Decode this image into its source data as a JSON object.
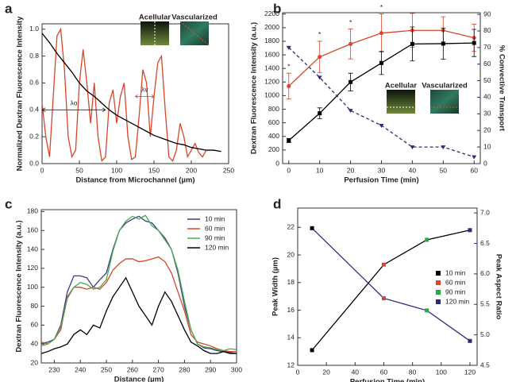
{
  "chart_data": [
    {
      "type": "line",
      "panel": "a",
      "xlabel": "Distance from Microchannel (µm)",
      "ylabel": "Normalized Dextran Fluorescence Intensity",
      "xlim": [
        0,
        250
      ],
      "xticks": [
        0,
        50,
        100,
        150,
        200,
        250
      ],
      "ylim": [
        0,
        1.04
      ],
      "yticks": [
        {
          "value": 0,
          "label": "0.0"
        },
        0.2,
        0.4,
        0.6,
        0.8,
        {
          "value": 1,
          "label": "1.0"
        }
      ],
      "series": [
        {
          "color": "#d9452b",
          "x": [
            0,
            5,
            10,
            15,
            20,
            25,
            30,
            35,
            40,
            45,
            50,
            55,
            60,
            65,
            70,
            75,
            80,
            85,
            90,
            95,
            100,
            105,
            110,
            115,
            120,
            125,
            130,
            135,
            140,
            145,
            150,
            155,
            160,
            165,
            170,
            175,
            180,
            185,
            190,
            195,
            200,
            205,
            210,
            215,
            220
          ],
          "values": [
            0.45,
            0.2,
            0.05,
            0.5,
            0.95,
            1.0,
            0.7,
            0.2,
            0.05,
            0.1,
            0.6,
            0.85,
            0.6,
            0.3,
            0.6,
            0.2,
            0.02,
            0.05,
            0.45,
            0.55,
            0.3,
            0.5,
            0.6,
            0.2,
            0.03,
            0.05,
            0.35,
            0.7,
            0.6,
            0.2,
            0.5,
            0.75,
            0.8,
            0.4,
            0.05,
            0.02,
            0.1,
            0.3,
            0.2,
            0.05,
            0.1,
            0.15,
            0.08,
            0.05,
            0.1
          ]
        },
        {
          "color": "#000000",
          "x": [
            0,
            10,
            20,
            30,
            40,
            50,
            60,
            70,
            80,
            90,
            100,
            110,
            120,
            130,
            140,
            150,
            160,
            170,
            180,
            190,
            200,
            210,
            220,
            230,
            240
          ],
          "values": [
            0.97,
            0.9,
            0.82,
            0.75,
            0.68,
            0.6,
            0.54,
            0.5,
            0.45,
            0.4,
            0.36,
            0.33,
            0.3,
            0.27,
            0.24,
            0.21,
            0.19,
            0.17,
            0.15,
            0.14,
            0.12,
            0.11,
            0.1,
            0.1,
            0.09
          ]
        }
      ],
      "lambda_o": "λo",
      "lambda_v": "λv",
      "insets": [
        "Acellular",
        "Vascularized"
      ]
    },
    {
      "type": "line",
      "panel": "b",
      "xlabel": "Perfusion Time (min)",
      "ylabel": "Dextran Fluorescence Intensity (a.u.)",
      "y2label": "% Convective Transport",
      "xlim": [
        -2,
        62
      ],
      "xticks": [
        0,
        10,
        20,
        30,
        40,
        50,
        60
      ],
      "ylim": [
        0,
        2220
      ],
      "yticks": [
        0,
        200,
        400,
        600,
        800,
        1000,
        1200,
        1400,
        1600,
        1800,
        2000,
        2200
      ],
      "y2lim": [
        0,
        91
      ],
      "y2ticks": [
        0,
        10,
        20,
        30,
        40,
        50,
        60,
        70,
        80,
        90
      ],
      "x": [
        0,
        10,
        20,
        30,
        40,
        50,
        60
      ],
      "series": [
        {
          "color": "#d9452b",
          "marker": "circle",
          "values": [
            1140,
            1570,
            1760,
            1920,
            1960,
            1960,
            1850
          ],
          "errors": [
            190,
            230,
            220,
            280,
            250,
            200,
            200
          ]
        },
        {
          "color": "#000000",
          "marker": "square",
          "values": [
            340,
            740,
            1200,
            1480,
            1760,
            1765,
            1775
          ],
          "errors": [
            30,
            80,
            130,
            170,
            250,
            230,
            200
          ]
        },
        {
          "color": "#2c2c7a",
          "marker": "triangle",
          "dash": true,
          "axis": "y2",
          "values": [
            70,
            52,
            32,
            23,
            10,
            10,
            4
          ]
        }
      ],
      "annotations": [
        {
          "text": "*",
          "x": 0
        },
        {
          "text": "*",
          "x": 10
        },
        {
          "text": "*",
          "x": 20
        },
        {
          "text": "*",
          "x": 30
        }
      ],
      "insets": [
        "Acellular",
        "Vascularized"
      ]
    },
    {
      "type": "line",
      "panel": "c",
      "xlabel": "Distance (µm)",
      "ylabel": "Dextran Fluorescence Intensity (a.u.)",
      "xlim": [
        225,
        300
      ],
      "xticks": [
        230,
        240,
        250,
        260,
        270,
        280,
        290,
        300
      ],
      "ylim": [
        20,
        182
      ],
      "yticks": [
        20,
        40,
        60,
        80,
        100,
        120,
        140,
        160,
        180
      ],
      "x": [
        225,
        227.5,
        230,
        232.5,
        235,
        237.5,
        240,
        242.5,
        245,
        247.5,
        250,
        252.5,
        255,
        257.5,
        260,
        262.5,
        265,
        267.5,
        270,
        272.5,
        275,
        277.5,
        280,
        282.5,
        285,
        287.5,
        290,
        292.5,
        295,
        297.5,
        300
      ],
      "series": [
        {
          "name": "10 min",
          "color": "#3a3a8c",
          "values": [
            40,
            42,
            45,
            60,
            95,
            112,
            112,
            110,
            100,
            108,
            115,
            140,
            160,
            168,
            172,
            175,
            170,
            168,
            160,
            152,
            140,
            115,
            80,
            55,
            40,
            36,
            35,
            33,
            32,
            31,
            30
          ]
        },
        {
          "name": "60 min",
          "color": "#d9452b",
          "values": [
            42,
            40,
            45,
            55,
            90,
            100,
            100,
            98,
            100,
            98,
            105,
            118,
            125,
            130,
            130,
            127,
            128,
            130,
            132,
            127,
            115,
            95,
            75,
            50,
            42,
            40,
            38,
            35,
            33,
            32,
            32
          ]
        },
        {
          "name": "90 min",
          "color": "#4daa4d",
          "values": [
            38,
            40,
            45,
            58,
            88,
            100,
            105,
            103,
            98,
            100,
            108,
            138,
            160,
            170,
            175,
            172,
            176,
            165,
            160,
            150,
            140,
            118,
            85,
            55,
            40,
            37,
            36,
            34,
            33,
            35,
            34
          ]
        },
        {
          "name": "120 min",
          "color": "#000000",
          "values": [
            30,
            32,
            35,
            37,
            40,
            50,
            55,
            50,
            60,
            57,
            75,
            90,
            100,
            110,
            95,
            80,
            70,
            60,
            80,
            95,
            85,
            70,
            55,
            42,
            38,
            33,
            30,
            30,
            32,
            30,
            30
          ]
        }
      ]
    },
    {
      "type": "line",
      "panel": "d",
      "xlabel": "Perfusion Time (min)",
      "ylabel": "Peak Width (µm)",
      "y2label": "Peak Aspect Ratio",
      "xlim": [
        0,
        125
      ],
      "xticks": [
        0,
        20,
        40,
        60,
        80,
        100,
        120
      ],
      "ylim": [
        12,
        23.4
      ],
      "yticks": [
        12,
        14,
        16,
        18,
        20,
        22
      ],
      "y2lim": [
        4.5,
        7.08
      ],
      "y2ticks": [
        4.5,
        {
          "value": 5,
          "label": "5.0"
        },
        5.5,
        {
          "value": 6,
          "label": "6.0"
        },
        6.5,
        {
          "value": 7,
          "label": "7.0"
        }
      ],
      "x": [
        10,
        60,
        90,
        120
      ],
      "series": [
        {
          "color": "#000000",
          "marker": "square",
          "values": [
            13.1,
            19.3,
            21.1,
            21.8
          ]
        },
        {
          "color": "#2c2c7a",
          "marker": "square",
          "axis": "y2",
          "values": [
            6.75,
            5.6,
            5.4,
            4.9
          ]
        }
      ],
      "legend": [
        {
          "name": "10 min",
          "color": "#000000"
        },
        {
          "name": "60 min",
          "color": "#d9452b"
        },
        {
          "name": "90 min",
          "color": "#22aa44"
        },
        {
          "name": "120 min",
          "color": "#2c2c7a"
        }
      ]
    }
  ]
}
